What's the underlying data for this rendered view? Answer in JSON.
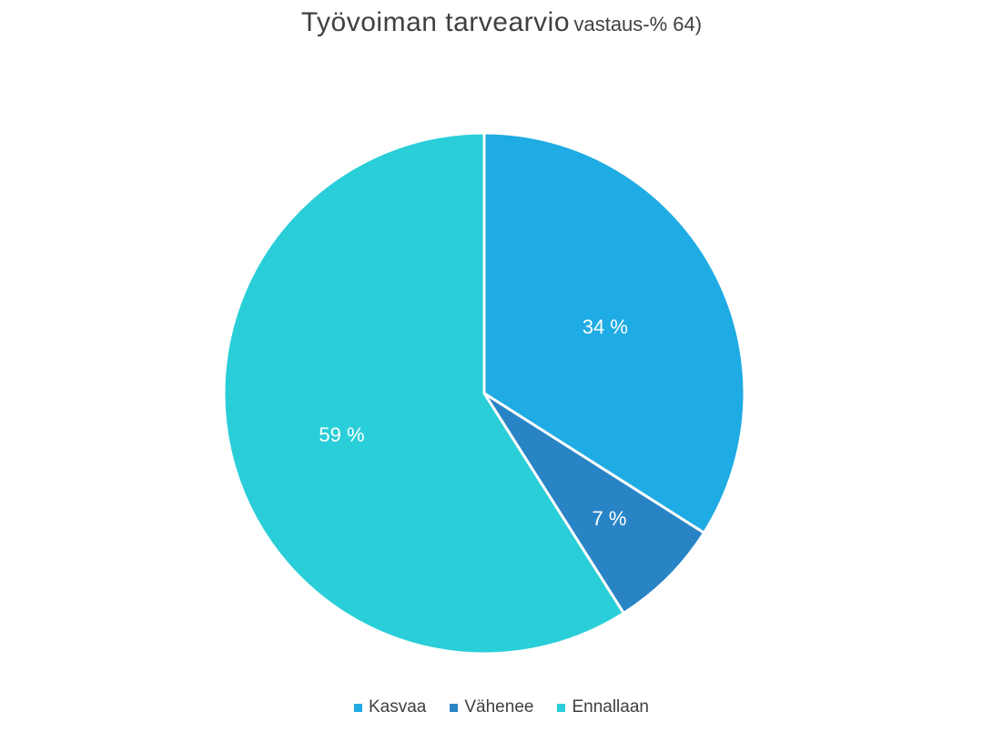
{
  "chart_data": {
    "type": "pie",
    "title": "Työvoiman tarvearvio",
    "subtitle": "vastaus-% 64)",
    "categories": [
      "Kasvaa",
      "Vähenee",
      "Ennallaan"
    ],
    "values": [
      34,
      7,
      59
    ],
    "value_labels": [
      "34 %",
      "7 %",
      "59 %"
    ],
    "colors": [
      "#1FABE3",
      "#2984C6",
      "#29CED8"
    ],
    "legend_position": "bottom"
  }
}
